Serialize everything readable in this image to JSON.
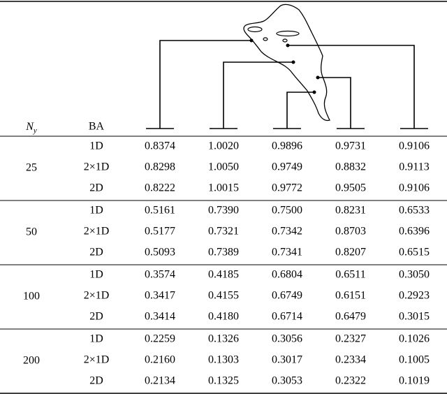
{
  "header": {
    "ny_label": "N",
    "ny_sub": "y",
    "ba_label": "BA"
  },
  "groups": [
    {
      "ny": "25",
      "rows": [
        {
          "ba": "1D",
          "values": [
            "0.8374",
            "1.0020",
            "0.9896",
            "0.9731",
            "0.9106"
          ]
        },
        {
          "ba": "2×1D",
          "values": [
            "0.8298",
            "1.0050",
            "0.9749",
            "0.8832",
            "0.9113"
          ]
        },
        {
          "ba": "2D",
          "values": [
            "0.8222",
            "1.0015",
            "0.9772",
            "0.9505",
            "0.9106"
          ]
        }
      ]
    },
    {
      "ny": "50",
      "rows": [
        {
          "ba": "1D",
          "values": [
            "0.5161",
            "0.7390",
            "0.7500",
            "0.8231",
            "0.6533"
          ]
        },
        {
          "ba": "2×1D",
          "values": [
            "0.5177",
            "0.7321",
            "0.7342",
            "0.8703",
            "0.6396"
          ]
        },
        {
          "ba": "2D",
          "values": [
            "0.5093",
            "0.7389",
            "0.7341",
            "0.8207",
            "0.6515"
          ]
        }
      ]
    },
    {
      "ny": "100",
      "rows": [
        {
          "ba": "1D",
          "values": [
            "0.3574",
            "0.4185",
            "0.6804",
            "0.6511",
            "0.3050"
          ]
        },
        {
          "ba": "2×1D",
          "values": [
            "0.3417",
            "0.4155",
            "0.6749",
            "0.6151",
            "0.2923"
          ]
        },
        {
          "ba": "2D",
          "values": [
            "0.3414",
            "0.4180",
            "0.6714",
            "0.6479",
            "0.3015"
          ]
        }
      ]
    },
    {
      "ny": "200",
      "rows": [
        {
          "ba": "1D",
          "values": [
            "0.2259",
            "0.1326",
            "0.3056",
            "0.2327",
            "0.1026"
          ]
        },
        {
          "ba": "2×1D",
          "values": [
            "0.2160",
            "0.1303",
            "0.3017",
            "0.2334",
            "0.1005"
          ]
        },
        {
          "ba": "2D",
          "values": [
            "0.2134",
            "0.1325",
            "0.3053",
            "0.2322",
            "0.1019"
          ]
        }
      ]
    }
  ]
}
